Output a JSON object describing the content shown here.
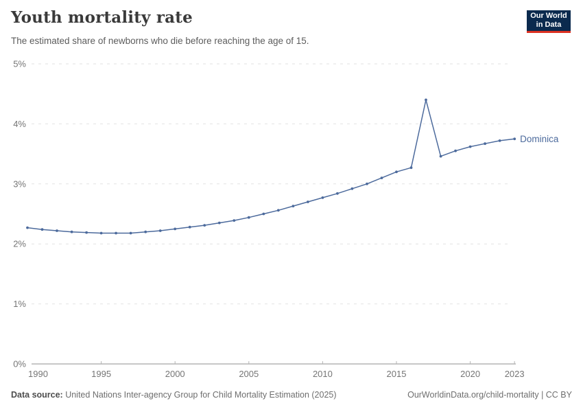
{
  "header": {
    "title": "Youth mortality rate",
    "subtitle": "The estimated share of newborns who die before reaching the age of 15.",
    "logo": {
      "line1": "Our World",
      "line2": "in Data"
    }
  },
  "chart_data": {
    "type": "line",
    "title": "Youth mortality rate",
    "xlabel": "",
    "ylabel": "",
    "ylim": [
      0,
      5
    ],
    "ytick_values": [
      0,
      1,
      2,
      3,
      4,
      5
    ],
    "ytick_labels": [
      "0%",
      "1%",
      "2%",
      "3%",
      "4%",
      "5%"
    ],
    "xticks": [
      1990,
      1995,
      2000,
      2005,
      2010,
      2015,
      2020,
      2023
    ],
    "grid": "horizontal-dashed",
    "legend_position": "end-of-line-label",
    "x": [
      1990,
      1991,
      1992,
      1993,
      1994,
      1995,
      1996,
      1997,
      1998,
      1999,
      2000,
      2001,
      2002,
      2003,
      2004,
      2005,
      2006,
      2007,
      2008,
      2009,
      2010,
      2011,
      2012,
      2013,
      2014,
      2015,
      2016,
      2017,
      2018,
      2019,
      2020,
      2021,
      2022,
      2023
    ],
    "series": [
      {
        "name": "Dominica",
        "color": "#4c6a9c",
        "values": [
          2.27,
          2.24,
          2.22,
          2.2,
          2.19,
          2.18,
          2.18,
          2.18,
          2.2,
          2.22,
          2.25,
          2.28,
          2.31,
          2.35,
          2.39,
          2.44,
          2.5,
          2.56,
          2.63,
          2.7,
          2.77,
          2.84,
          2.92,
          3.0,
          3.1,
          3.2,
          3.27,
          4.4,
          3.46,
          3.55,
          3.62,
          3.67,
          3.72,
          3.75
        ]
      }
    ]
  },
  "footer": {
    "datasource_label": "Data source:",
    "datasource_text": " United Nations Inter-agency Group for Child Mortality Estimation (2025)",
    "attribution": "OurWorldinData.org/child-mortality | CC BY"
  },
  "colors": {
    "line": "#4c6a9c",
    "gridline": "#e2e2e2",
    "axis": "#8f8f8f",
    "tick": "#b3b3b3",
    "tick_label": "#757575",
    "logo_bg": "#0b2a4e",
    "logo_stripe": "#dc3122"
  }
}
